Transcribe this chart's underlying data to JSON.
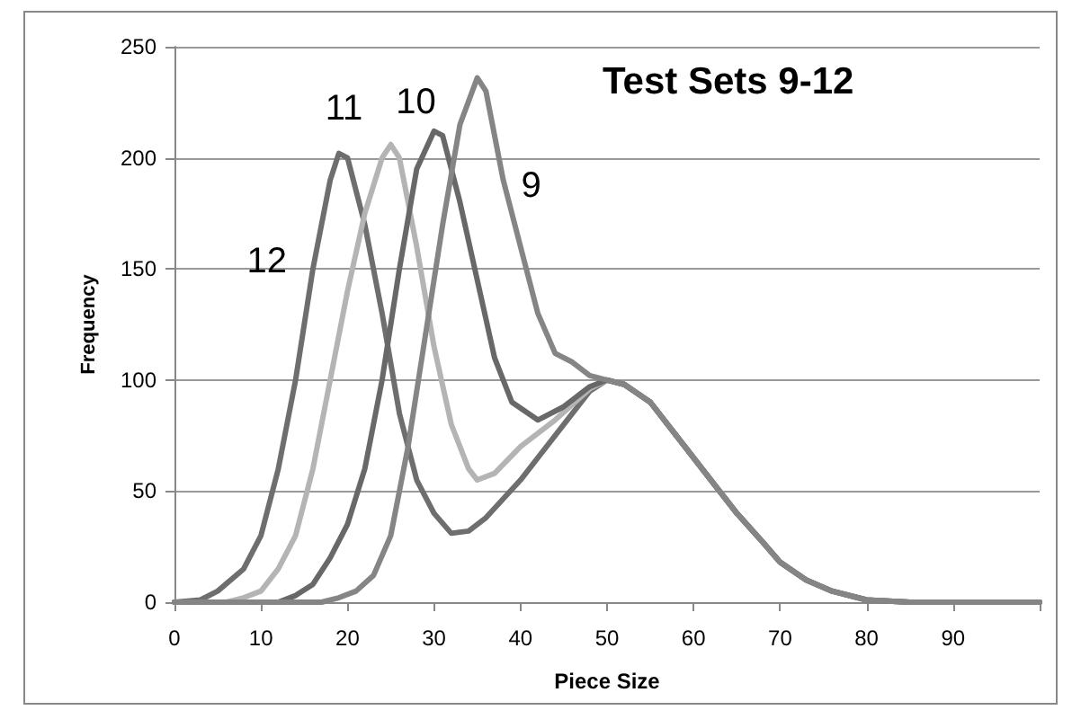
{
  "chart_data": {
    "type": "line",
    "title": "Test Sets 9-12",
    "xlabel": "Piece Size",
    "ylabel": "Frequency",
    "xlim": [
      0,
      100
    ],
    "xticks": [
      0,
      10,
      20,
      30,
      40,
      50,
      60,
      70,
      80,
      90,
      {
        "value": 100,
        "label": null
      }
    ],
    "ylim": [
      0,
      250
    ],
    "yticks": [
      0,
      50,
      100,
      150,
      200,
      250
    ],
    "grid": "y",
    "marker": "none",
    "line_style": "solid",
    "series": [
      {
        "name": "12",
        "color": "#6e6e6e",
        "x": [
          0,
          3,
          5,
          8,
          10,
          12,
          14,
          16,
          18,
          19,
          20,
          22,
          24,
          26,
          28,
          30,
          32,
          34,
          36,
          40,
          44,
          48,
          50,
          52,
          55,
          58,
          60,
          62,
          65,
          68,
          70,
          73,
          76,
          80,
          85,
          100
        ],
        "values": [
          0,
          1,
          5,
          15,
          30,
          60,
          100,
          150,
          190,
          202,
          200,
          170,
          130,
          85,
          55,
          40,
          31,
          32,
          38,
          55,
          75,
          95,
          100,
          98,
          90,
          75,
          65,
          55,
          40,
          27,
          18,
          10,
          5,
          1,
          0,
          0
        ]
      },
      {
        "name": "11",
        "color": "#b4b4b4",
        "x": [
          0,
          6,
          8,
          10,
          12,
          14,
          16,
          18,
          20,
          22,
          24,
          25,
          26,
          28,
          30,
          32,
          34,
          35,
          37,
          40,
          44,
          48,
          50,
          52,
          55,
          58,
          60,
          62,
          65,
          68,
          70,
          73,
          76,
          80,
          85,
          100
        ],
        "values": [
          0,
          0,
          2,
          5,
          15,
          30,
          60,
          100,
          140,
          175,
          200,
          206,
          200,
          160,
          115,
          80,
          60,
          55,
          58,
          70,
          82,
          96,
          100,
          98,
          90,
          75,
          65,
          55,
          40,
          27,
          18,
          10,
          5,
          1,
          0,
          0
        ]
      },
      {
        "name": "10",
        "color": "#686868",
        "x": [
          0,
          12,
          14,
          16,
          18,
          20,
          22,
          24,
          26,
          28,
          30,
          31,
          33,
          35,
          37,
          39,
          42,
          45,
          48,
          50,
          52,
          55,
          58,
          60,
          62,
          65,
          68,
          70,
          73,
          76,
          80,
          85,
          100
        ],
        "values": [
          0,
          0,
          3,
          8,
          20,
          35,
          60,
          100,
          150,
          195,
          212,
          210,
          180,
          145,
          110,
          90,
          82,
          88,
          97,
          100,
          98,
          90,
          75,
          65,
          55,
          40,
          27,
          18,
          10,
          5,
          1,
          0,
          0
        ]
      },
      {
        "name": "9",
        "color": "#858585",
        "x": [
          0,
          17,
          19,
          21,
          23,
          25,
          27,
          29,
          31,
          33,
          35,
          36,
          38,
          40,
          42,
          44,
          46,
          48,
          50,
          52,
          55,
          58,
          60,
          62,
          65,
          68,
          70,
          73,
          76,
          80,
          85,
          100
        ],
        "values": [
          0,
          0,
          2,
          5,
          12,
          30,
          70,
          120,
          170,
          215,
          236,
          230,
          190,
          160,
          130,
          112,
          108,
          102,
          100,
          98,
          90,
          75,
          65,
          55,
          40,
          27,
          18,
          10,
          5,
          1,
          0,
          0
        ]
      }
    ]
  }
}
